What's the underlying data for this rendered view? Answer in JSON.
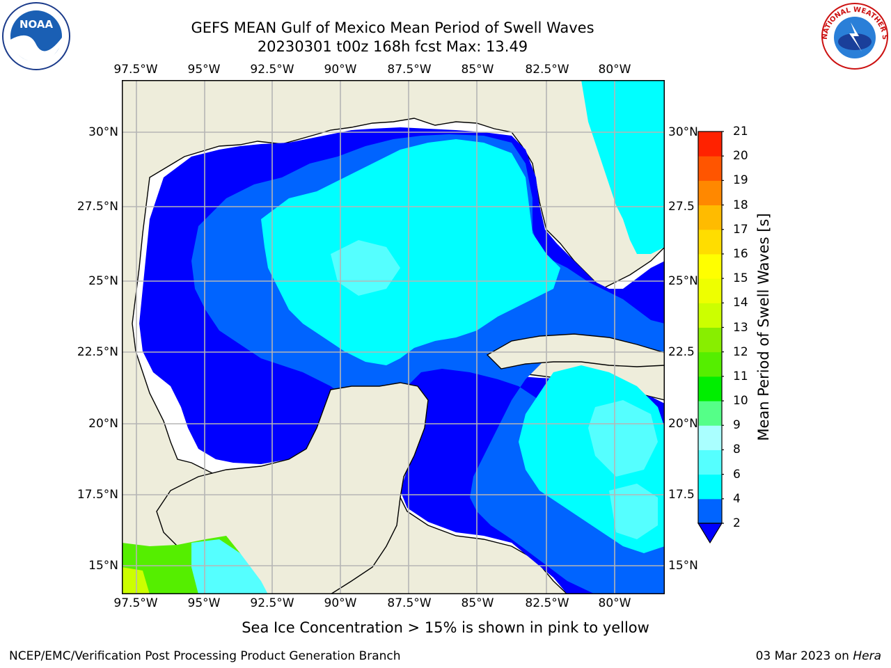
{
  "title": {
    "line1": "GEFS MEAN Gulf of Mexico Mean Period of Swell Waves",
    "line2": "20230301 t00z 168h fcst   Max: 13.49"
  },
  "map": {
    "lon_labels": [
      "97.5°W",
      "95°W",
      "92.5°W",
      "90°W",
      "87.5°W",
      "85°W",
      "82.5°W",
      "80°W"
    ],
    "lat_labels_left": [
      "30°N",
      "27.5°N",
      "25°N",
      "22.5°N",
      "20°N",
      "17.5°N",
      "15°N"
    ],
    "lat_labels_right": [
      "30°N",
      "27.5",
      "25°N",
      "22.5",
      "20°N",
      "17.5",
      "15°N"
    ],
    "land_color": "#eeeddb",
    "ocean_white_color": "#ffffff"
  },
  "colorbar": {
    "label": "Mean Period of Swell Waves [s]",
    "ticks": [
      "2",
      "4",
      "6",
      "8",
      "9",
      "10",
      "11",
      "12",
      "13",
      "14",
      "15",
      "16",
      "17",
      "18",
      "19",
      "20",
      "21"
    ],
    "colors": [
      "#0000ff",
      "#0064ff",
      "#00ffff",
      "#55ffff",
      "#aaffff",
      "#55ff88",
      "#00ee00",
      "#55ee00",
      "#88ee00",
      "#ccff00",
      "#eeff00",
      "#ffff00",
      "#ffdd00",
      "#ffbb00",
      "#ff8800",
      "#ff5500",
      "#ff2200",
      "#ff0000"
    ]
  },
  "logos": {
    "noaa_text": "NOAA",
    "nws_text": "NATIONAL WEATHER SERVICE"
  },
  "caption": "Sea Ice Concentration > 15% is shown in pink to yellow",
  "footer": {
    "left": "NCEP/EMC/Verification Post Processing Product Generation Branch",
    "date": "03 Mar 2023 on ",
    "machine": "Hera"
  }
}
